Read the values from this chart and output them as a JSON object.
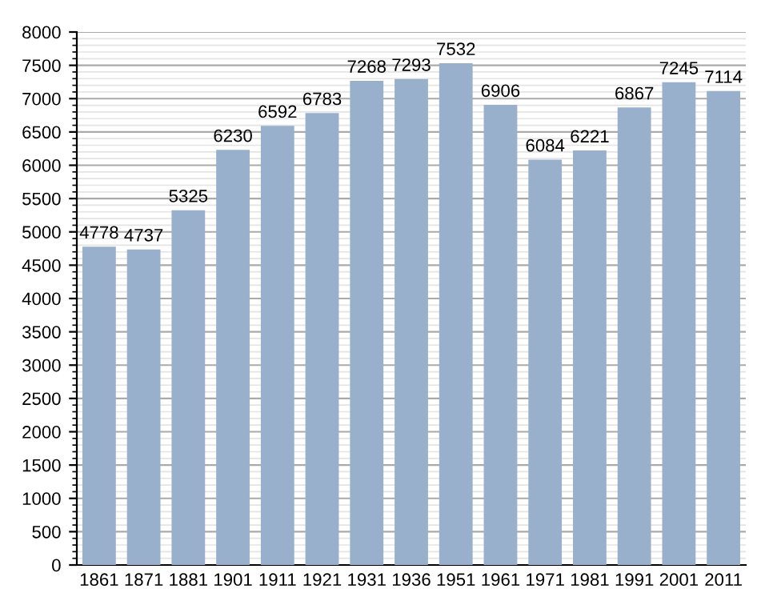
{
  "chart_data": {
    "type": "bar",
    "categories": [
      "1861",
      "1871",
      "1881",
      "1901",
      "1911",
      "1921",
      "1931",
      "1936",
      "1951",
      "1961",
      "1971",
      "1981",
      "1991",
      "2001",
      "2011"
    ],
    "values": [
      4778,
      4737,
      5325,
      6230,
      6592,
      6783,
      7268,
      7293,
      7532,
      6906,
      6084,
      6221,
      6867,
      7245,
      7114
    ],
    "color": "#98b0cc",
    "data_labels": true,
    "ylim": [
      0,
      8000
    ],
    "yticks": [
      0,
      500,
      1000,
      1500,
      2000,
      2500,
      3000,
      3500,
      4000,
      4500,
      5000,
      5500,
      6000,
      6500,
      7000,
      7500,
      8000
    ],
    "grid": "y"
  }
}
